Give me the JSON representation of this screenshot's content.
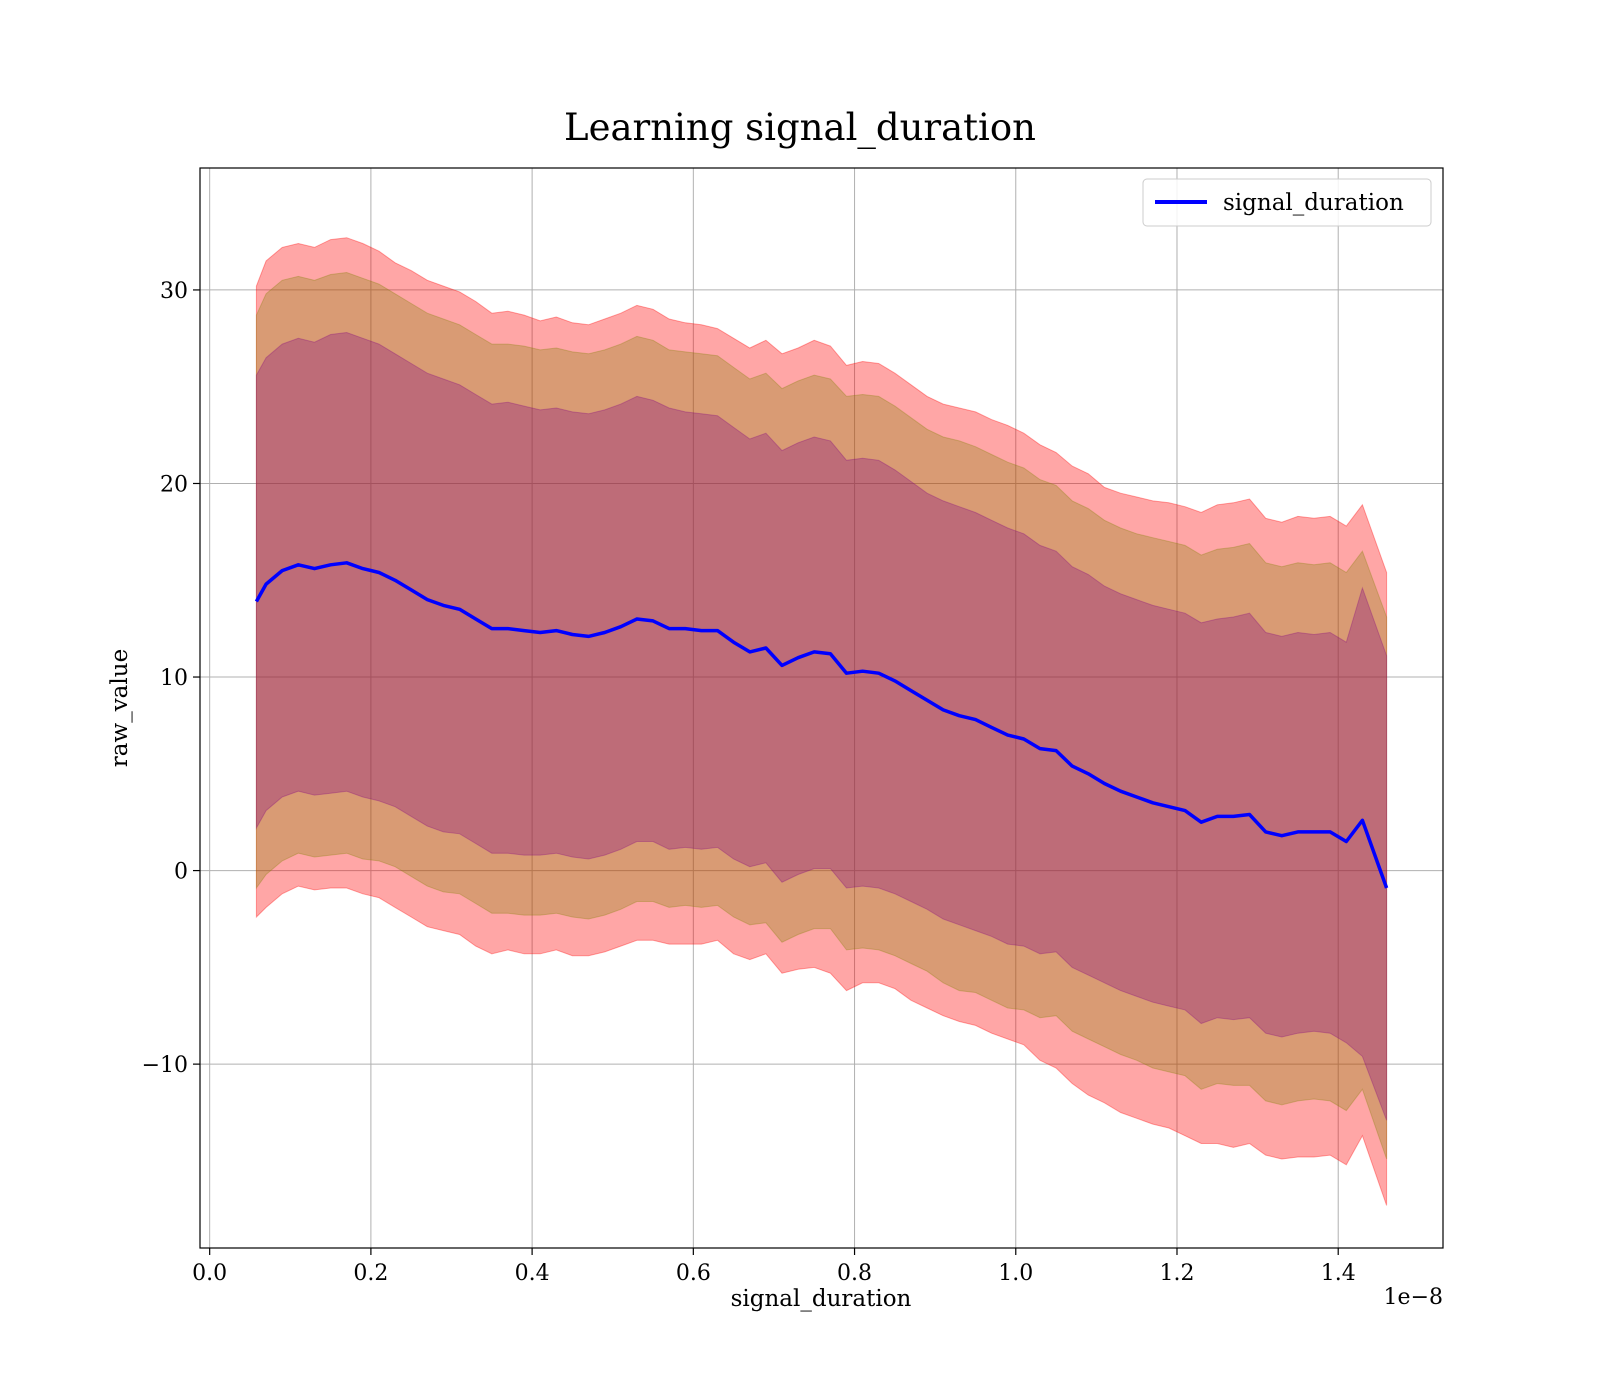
{
  "chart_data": {
    "type": "line",
    "title": "Learning signal_duration",
    "xlabel": "signal_duration",
    "ylabel": "raw_value",
    "x_offset_label": "1e−8",
    "xlim": [
      -0.012,
      1.53
    ],
    "ylim": [
      -19.5,
      36.3
    ],
    "x_ticks": [
      0.0,
      0.2,
      0.4,
      0.6,
      0.8,
      1.0,
      1.2,
      1.4
    ],
    "x_tick_labels": [
      "0.0",
      "0.2",
      "0.4",
      "0.6",
      "0.8",
      "1.0",
      "1.2",
      "1.4"
    ],
    "y_ticks": [
      -10,
      0,
      10,
      20,
      30
    ],
    "y_tick_labels": [
      "−10",
      "0",
      "10",
      "20",
      "30"
    ],
    "grid": true,
    "legend_position": "top-right",
    "series": [
      {
        "name": "signal_duration",
        "color": "#0000ff",
        "x": [
          0.058,
          0.07,
          0.09,
          0.11,
          0.13,
          0.15,
          0.17,
          0.19,
          0.21,
          0.23,
          0.25,
          0.27,
          0.29,
          0.31,
          0.33,
          0.35,
          0.37,
          0.39,
          0.41,
          0.43,
          0.45,
          0.47,
          0.49,
          0.51,
          0.53,
          0.55,
          0.57,
          0.59,
          0.61,
          0.63,
          0.65,
          0.67,
          0.69,
          0.71,
          0.73,
          0.75,
          0.77,
          0.79,
          0.81,
          0.83,
          0.85,
          0.87,
          0.89,
          0.91,
          0.93,
          0.95,
          0.97,
          0.99,
          1.01,
          1.03,
          1.05,
          1.07,
          1.09,
          1.11,
          1.13,
          1.15,
          1.17,
          1.19,
          1.21,
          1.23,
          1.25,
          1.27,
          1.29,
          1.31,
          1.33,
          1.35,
          1.37,
          1.39,
          1.41,
          1.43,
          1.46
        ],
        "values": [
          13.9,
          14.8,
          15.5,
          15.8,
          15.6,
          15.8,
          15.9,
          15.6,
          15.4,
          15.0,
          14.5,
          14.0,
          13.7,
          13.5,
          13.0,
          12.5,
          12.5,
          12.4,
          12.3,
          12.4,
          12.2,
          12.1,
          12.3,
          12.6,
          13.0,
          12.9,
          12.5,
          12.5,
          12.4,
          12.4,
          11.8,
          11.3,
          11.5,
          10.6,
          11.0,
          11.3,
          11.2,
          10.2,
          10.3,
          10.2,
          9.8,
          9.3,
          8.8,
          8.3,
          8.0,
          7.8,
          7.4,
          7.0,
          6.8,
          6.3,
          6.2,
          5.4,
          5.0,
          4.5,
          4.1,
          3.8,
          3.5,
          3.3,
          3.1,
          2.5,
          2.8,
          2.8,
          2.9,
          2.0,
          1.8,
          2.0,
          2.0,
          2.0,
          1.5,
          2.6,
          -0.9
        ]
      }
    ],
    "bands": [
      {
        "color": "#ff0000",
        "opacity": 0.35,
        "x": [
          0.058,
          0.07,
          0.09,
          0.11,
          0.13,
          0.15,
          0.17,
          0.19,
          0.21,
          0.23,
          0.25,
          0.27,
          0.29,
          0.31,
          0.33,
          0.35,
          0.37,
          0.39,
          0.41,
          0.43,
          0.45,
          0.47,
          0.49,
          0.51,
          0.53,
          0.55,
          0.57,
          0.59,
          0.61,
          0.63,
          0.65,
          0.67,
          0.69,
          0.71,
          0.73,
          0.75,
          0.77,
          0.79,
          0.81,
          0.83,
          0.85,
          0.87,
          0.89,
          0.91,
          0.93,
          0.95,
          0.97,
          0.99,
          1.01,
          1.03,
          1.05,
          1.07,
          1.09,
          1.11,
          1.13,
          1.15,
          1.17,
          1.19,
          1.21,
          1.23,
          1.25,
          1.27,
          1.29,
          1.31,
          1.33,
          1.35,
          1.37,
          1.39,
          1.41,
          1.43,
          1.46
        ],
        "upper": [
          30.2,
          31.5,
          32.2,
          32.4,
          32.2,
          32.6,
          32.7,
          32.4,
          32.0,
          31.4,
          31.0,
          30.5,
          30.2,
          29.9,
          29.4,
          28.8,
          28.9,
          28.7,
          28.4,
          28.6,
          28.3,
          28.2,
          28.5,
          28.8,
          29.2,
          29.0,
          28.5,
          28.3,
          28.2,
          28.0,
          27.5,
          27.0,
          27.4,
          26.7,
          27.0,
          27.4,
          27.1,
          26.1,
          26.3,
          26.2,
          25.7,
          25.1,
          24.5,
          24.1,
          23.9,
          23.7,
          23.3,
          23.0,
          22.6,
          22.0,
          21.6,
          20.9,
          20.5,
          19.8,
          19.5,
          19.3,
          19.1,
          19.0,
          18.8,
          18.5,
          18.9,
          19.0,
          19.2,
          18.2,
          18.0,
          18.3,
          18.2,
          18.3,
          17.8,
          18.9,
          15.4
        ],
        "lower": [
          -2.4,
          -1.9,
          -1.2,
          -0.8,
          -1.0,
          -0.9,
          -0.9,
          -1.2,
          -1.4,
          -1.9,
          -2.4,
          -2.9,
          -3.1,
          -3.3,
          -3.9,
          -4.3,
          -4.1,
          -4.3,
          -4.3,
          -4.1,
          -4.4,
          -4.4,
          -4.2,
          -3.9,
          -3.6,
          -3.6,
          -3.8,
          -3.8,
          -3.8,
          -3.6,
          -4.3,
          -4.6,
          -4.3,
          -5.3,
          -5.1,
          -5.0,
          -5.3,
          -6.2,
          -5.8,
          -5.8,
          -6.1,
          -6.7,
          -7.1,
          -7.5,
          -7.8,
          -8.0,
          -8.4,
          -8.7,
          -9.0,
          -9.8,
          -10.2,
          -11.0,
          -11.6,
          -12.0,
          -12.5,
          -12.8,
          -13.1,
          -13.3,
          -13.7,
          -14.1,
          -14.1,
          -14.3,
          -14.1,
          -14.7,
          -14.9,
          -14.8,
          -14.8,
          -14.7,
          -15.2,
          -13.7,
          -17.3
        ]
      },
      {
        "color": "#808000",
        "opacity": 0.3,
        "x": [
          0.058,
          0.07,
          0.09,
          0.11,
          0.13,
          0.15,
          0.17,
          0.19,
          0.21,
          0.23,
          0.25,
          0.27,
          0.29,
          0.31,
          0.33,
          0.35,
          0.37,
          0.39,
          0.41,
          0.43,
          0.45,
          0.47,
          0.49,
          0.51,
          0.53,
          0.55,
          0.57,
          0.59,
          0.61,
          0.63,
          0.65,
          0.67,
          0.69,
          0.71,
          0.73,
          0.75,
          0.77,
          0.79,
          0.81,
          0.83,
          0.85,
          0.87,
          0.89,
          0.91,
          0.93,
          0.95,
          0.97,
          0.99,
          1.01,
          1.03,
          1.05,
          1.07,
          1.09,
          1.11,
          1.13,
          1.15,
          1.17,
          1.19,
          1.21,
          1.23,
          1.25,
          1.27,
          1.29,
          1.31,
          1.33,
          1.35,
          1.37,
          1.39,
          1.41,
          1.43,
          1.46
        ],
        "upper": [
          28.7,
          29.8,
          30.5,
          30.7,
          30.5,
          30.8,
          30.9,
          30.6,
          30.3,
          29.8,
          29.3,
          28.8,
          28.5,
          28.2,
          27.7,
          27.2,
          27.2,
          27.1,
          26.9,
          27.0,
          26.8,
          26.7,
          26.9,
          27.2,
          27.6,
          27.4,
          26.9,
          26.8,
          26.7,
          26.6,
          26.0,
          25.4,
          25.7,
          24.9,
          25.3,
          25.6,
          25.4,
          24.5,
          24.6,
          24.5,
          24.0,
          23.4,
          22.8,
          22.4,
          22.2,
          21.9,
          21.5,
          21.1,
          20.8,
          20.2,
          19.9,
          19.1,
          18.7,
          18.1,
          17.7,
          17.4,
          17.2,
          17.0,
          16.8,
          16.3,
          16.6,
          16.7,
          16.9,
          15.9,
          15.7,
          15.9,
          15.8,
          15.9,
          15.4,
          16.5,
          13.1
        ],
        "lower": [
          -0.9,
          -0.2,
          0.5,
          0.9,
          0.7,
          0.8,
          0.9,
          0.6,
          0.5,
          0.2,
          -0.3,
          -0.8,
          -1.1,
          -1.2,
          -1.7,
          -2.2,
          -2.2,
          -2.3,
          -2.3,
          -2.2,
          -2.4,
          -2.5,
          -2.3,
          -2.0,
          -1.6,
          -1.6,
          -1.9,
          -1.8,
          -1.9,
          -1.8,
          -2.4,
          -2.8,
          -2.7,
          -3.7,
          -3.3,
          -3.0,
          -3.0,
          -4.1,
          -4.0,
          -4.1,
          -4.4,
          -4.8,
          -5.2,
          -5.8,
          -6.2,
          -6.3,
          -6.7,
          -7.1,
          -7.2,
          -7.6,
          -7.5,
          -8.3,
          -8.7,
          -9.1,
          -9.5,
          -9.8,
          -10.2,
          -10.4,
          -10.6,
          -11.3,
          -11.0,
          -11.1,
          -11.1,
          -11.9,
          -12.1,
          -11.9,
          -11.8,
          -11.9,
          -12.4,
          -11.3,
          -14.9
        ]
      },
      {
        "color": "#800080",
        "opacity": 0.3,
        "x": [
          0.058,
          0.07,
          0.09,
          0.11,
          0.13,
          0.15,
          0.17,
          0.19,
          0.21,
          0.23,
          0.25,
          0.27,
          0.29,
          0.31,
          0.33,
          0.35,
          0.37,
          0.39,
          0.41,
          0.43,
          0.45,
          0.47,
          0.49,
          0.51,
          0.53,
          0.55,
          0.57,
          0.59,
          0.61,
          0.63,
          0.65,
          0.67,
          0.69,
          0.71,
          0.73,
          0.75,
          0.77,
          0.79,
          0.81,
          0.83,
          0.85,
          0.87,
          0.89,
          0.91,
          0.93,
          0.95,
          0.97,
          0.99,
          1.01,
          1.03,
          1.05,
          1.07,
          1.09,
          1.11,
          1.13,
          1.15,
          1.17,
          1.19,
          1.21,
          1.23,
          1.25,
          1.27,
          1.29,
          1.31,
          1.33,
          1.35,
          1.37,
          1.39,
          1.41,
          1.43,
          1.46
        ],
        "upper": [
          25.6,
          26.5,
          27.2,
          27.5,
          27.3,
          27.7,
          27.8,
          27.5,
          27.2,
          26.7,
          26.2,
          25.7,
          25.4,
          25.1,
          24.6,
          24.1,
          24.2,
          24.0,
          23.8,
          23.9,
          23.7,
          23.6,
          23.8,
          24.1,
          24.5,
          24.3,
          23.9,
          23.7,
          23.6,
          23.5,
          22.9,
          22.3,
          22.6,
          21.7,
          22.1,
          22.4,
          22.2,
          21.2,
          21.3,
          21.2,
          20.7,
          20.1,
          19.5,
          19.1,
          18.8,
          18.5,
          18.1,
          17.7,
          17.4,
          16.8,
          16.5,
          15.7,
          15.3,
          14.7,
          14.3,
          14.0,
          13.7,
          13.5,
          13.3,
          12.8,
          13.0,
          13.1,
          13.3,
          12.3,
          12.1,
          12.3,
          12.2,
          12.3,
          11.8,
          14.6,
          11.1
        ],
        "lower": [
          2.2,
          3.1,
          3.8,
          4.1,
          3.9,
          4.0,
          4.1,
          3.8,
          3.6,
          3.3,
          2.8,
          2.3,
          2.0,
          1.9,
          1.4,
          0.9,
          0.9,
          0.8,
          0.8,
          0.9,
          0.7,
          0.6,
          0.8,
          1.1,
          1.5,
          1.5,
          1.1,
          1.2,
          1.1,
          1.2,
          0.6,
          0.2,
          0.4,
          -0.6,
          -0.2,
          0.1,
          0.1,
          -0.9,
          -0.8,
          -0.9,
          -1.2,
          -1.6,
          -2.0,
          -2.5,
          -2.8,
          -3.1,
          -3.4,
          -3.8,
          -3.9,
          -4.3,
          -4.2,
          -5.0,
          -5.4,
          -5.8,
          -6.2,
          -6.5,
          -6.8,
          -7.0,
          -7.2,
          -7.9,
          -7.6,
          -7.7,
          -7.6,
          -8.4,
          -8.6,
          -8.4,
          -8.3,
          -8.4,
          -8.9,
          -9.6,
          -12.9
        ]
      }
    ]
  }
}
